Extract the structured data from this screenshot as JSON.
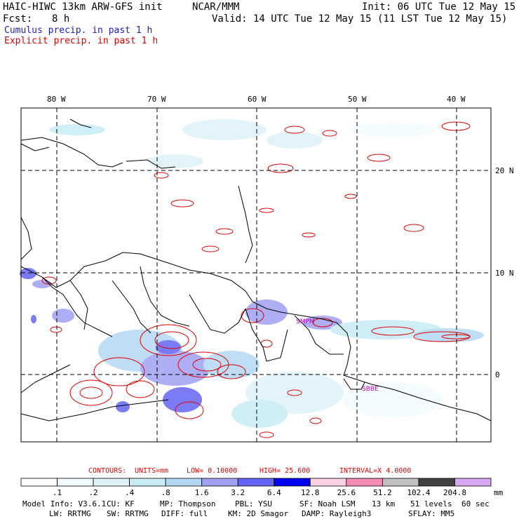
{
  "header": {
    "model": "HAIC-HIWC 13km ARW-GFS init",
    "org": "NCAR/MMM",
    "init": "Init: 06 UTC Tue 12 May 15",
    "fcst_label": "Fcst:",
    "fcst_value": "8 h",
    "valid": "Valid: 14 UTC Tue 12 May 15 (11 LST Tue 12 May 15)",
    "cumulus": "Cumulus precip. in past 1 h",
    "explicit": "Explicit precip. in past 1 h"
  },
  "colors": {
    "cumulus_text": "#2020c0",
    "explicit_text": "#e00000",
    "contour": "#e00000",
    "coast": "#000000",
    "grid": "#000000"
  },
  "map": {
    "lon_labels": [
      "80 W",
      "70 W",
      "60 W",
      "50 W",
      "40 W"
    ],
    "lat_labels": [
      "20 N",
      "10 N",
      "0"
    ],
    "station_labels": [
      "SMPM",
      "SBBE"
    ]
  },
  "contours_info": {
    "contours": "CONTOURS:",
    "units": "UNITS=mm",
    "low": "LOW= 0.10000",
    "high": "HIGH= 25.600",
    "interval": "INTERVAL=X 4.0000"
  },
  "colorbar": {
    "labels": [
      ".1",
      ".2",
      ".4",
      ".8",
      "1.6",
      "3.2",
      "6.4",
      "12.8",
      "25.6",
      "51.2",
      "102.4",
      "204.8"
    ],
    "colors": [
      "#ffffff",
      "#f2fbfd",
      "#def2f8",
      "#c8ecf4",
      "#b4d8f4",
      "#a0a0f4",
      "#6464f4",
      "#0000f4",
      "#fcd2e4",
      "#f48cb4",
      "#c0c0c0",
      "#404040",
      "#d8a8f4"
    ],
    "unit": "mm"
  },
  "model_info": {
    "line1": [
      "Model Info: V3.6.1",
      "CU: KF",
      "MP: Thompson",
      "PBL: YSU",
      "SF: Noah LSM",
      "13 km",
      "51 levels",
      "60 sec"
    ],
    "line2": [
      "LW: RRTMG",
      "SW: RRTMG",
      "DIFF: full",
      "KM: 2D Smagor",
      "DAMP: Rayleigh3",
      "SFLAY: MM5"
    ]
  }
}
